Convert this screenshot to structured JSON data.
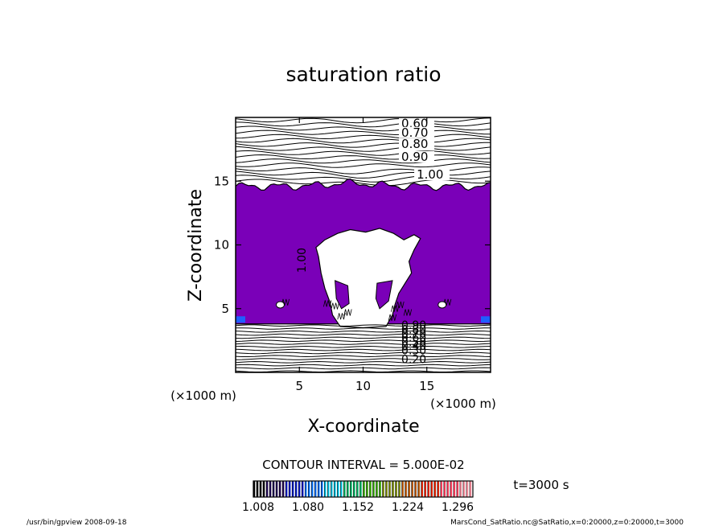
{
  "chart_data": {
    "type": "contour",
    "title": "saturation ratio",
    "xlabel": "X-coordinate",
    "ylabel": "Z-coordinate",
    "x_unit": "(×1000 m)",
    "y_unit": "(×1000 m)",
    "xlim": [
      0,
      20
    ],
    "ylim": [
      0,
      20
    ],
    "x_ticks": [
      5,
      10,
      15
    ],
    "y_ticks": [
      5,
      10,
      15
    ],
    "contour_interval_text": "CONTOUR INTERVAL = 5.000E-02",
    "time_label": "t=3000 s",
    "filled_region": {
      "threshold": 1.0,
      "cloud_top_km": 14.6,
      "cloud_base_km": 3.8,
      "fill_color": "#7a00b8",
      "edge_color": "#1f5fff"
    },
    "upper_contours": [
      {
        "label": "0.60",
        "z": 19.2
      },
      {
        "label": "0.70",
        "z": 18.5
      },
      {
        "label": "0.80",
        "z": 17.6
      },
      {
        "label": "0.90",
        "z": 16.6
      },
      {
        "label": "1.00",
        "z": 15.2
      }
    ],
    "inner_contour_label": "1.00",
    "lower_contour_labels": [
      "0.90",
      "0.80",
      "0.70",
      "0.60",
      "0.50",
      "0.40",
      "0.30",
      "0.20"
    ],
    "colorbar": {
      "tick_labels": [
        "1.008",
        "1.080",
        "1.152",
        "1.224",
        "1.296"
      ],
      "colors": [
        "#000000",
        "#1a0050",
        "#0018c8",
        "#0070ff",
        "#00c0e0",
        "#00b060",
        "#30a000",
        "#708000",
        "#b05000",
        "#e02000",
        "#ff4060",
        "#ff90a0"
      ]
    },
    "footer_left": "/usr/bin/gpview   2008-09-18",
    "footer_right": "MarsCond_SatRatio.nc@SatRatio,x=0:20000,z=0:20000,t=3000"
  }
}
